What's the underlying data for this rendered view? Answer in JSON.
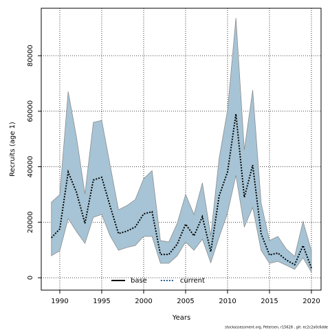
{
  "chart_data": {
    "type": "band-line",
    "x_label": "Years",
    "y_label": "Recruits (age 1)",
    "x": [
      1989,
      1990,
      1991,
      1992,
      1993,
      1994,
      1995,
      1996,
      1997,
      1998,
      1999,
      2000,
      2001,
      2002,
      2003,
      2004,
      2005,
      2006,
      2007,
      2008,
      2009,
      2010,
      2011,
      2012,
      2013,
      2014,
      2015,
      2016,
      2017,
      2018,
      2019,
      2020
    ],
    "series": [
      {
        "name": "current",
        "color": "#000000",
        "values": [
          14400,
          17600,
          38100,
          30700,
          19600,
          35200,
          36200,
          25800,
          15900,
          16800,
          18300,
          23000,
          23800,
          8400,
          8400,
          12100,
          19300,
          15100,
          22000,
          9400,
          29500,
          38100,
          59000,
          29000,
          40600,
          15900,
          8200,
          8900,
          6400,
          4700,
          11600,
          3500
        ]
      }
    ],
    "band_upper": [
      27200,
      30000,
      67100,
      50500,
      30200,
      56000,
      56700,
      40600,
      24500,
      26000,
      28200,
      35700,
      38600,
      13400,
      12900,
      19600,
      30000,
      22800,
      34200,
      15100,
      43100,
      60400,
      93600,
      46100,
      67600,
      27000,
      13400,
      14900,
      10400,
      7700,
      20300,
      9700
    ],
    "band_lower": [
      7900,
      9700,
      21300,
      16600,
      12400,
      21800,
      22800,
      15100,
      9900,
      10900,
      11600,
      14900,
      14900,
      5200,
      5200,
      7900,
      12900,
      9900,
      13900,
      5400,
      14600,
      23300,
      36900,
      18300,
      25300,
      9900,
      5200,
      5900,
      4500,
      3000,
      7200,
      2000
    ],
    "band_color": "#a6c4d5",
    "band_edge": "#8c8c8c",
    "legend": [
      {
        "label": "base",
        "color": "#000000",
        "dash": "solid"
      },
      {
        "label": "current",
        "color": "#1f5a8a",
        "dash": "dotted"
      }
    ],
    "xlim": [
      1987.79,
      2021.15
    ],
    "xticks": [
      1990,
      1995,
      2000,
      2005,
      2010,
      2015,
      2020
    ],
    "ylim": [
      -4460,
      97100
    ],
    "yticks": [
      0,
      20000,
      40000,
      60000,
      80000
    ],
    "grid": true,
    "footer": "stockassessment.org, Petersen, r15628 , git: ec2c2a0c6dde"
  }
}
